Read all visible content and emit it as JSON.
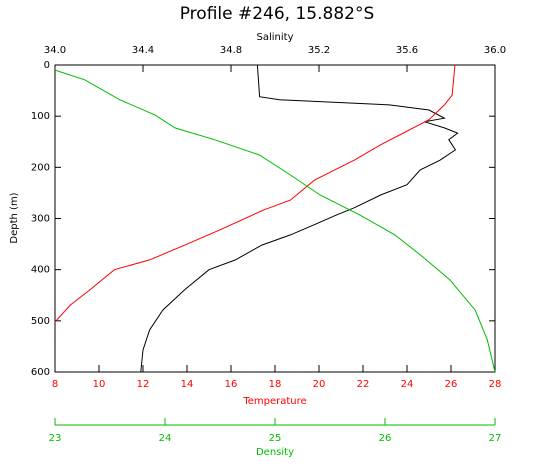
{
  "chart_data": {
    "type": "line",
    "title": "Profile #246, 15.882°S",
    "ylabel": "Depth (m)",
    "ylim": [
      0,
      600
    ],
    "yticks": [
      0,
      100,
      200,
      300,
      400,
      500,
      600
    ],
    "y_inverted": true,
    "series": [
      {
        "label": "Salinity",
        "color": "#000000",
        "position": "top",
        "xlim": [
          34,
          36
        ],
        "xticks": [
          {
            "value": 34,
            "label": "34.0"
          },
          34.4,
          34.8,
          35.2,
          35.6,
          {
            "value": 36,
            "label": "36.0"
          }
        ],
        "values": [
          34.92,
          34.93,
          35.02,
          35.52,
          35.7,
          35.77,
          35.68,
          35.77,
          35.83,
          35.79,
          35.82,
          35.75,
          35.66,
          35.6,
          35.48,
          35.36,
          35.28,
          35.18,
          35.07,
          34.94,
          34.82,
          34.7,
          34.59,
          34.49,
          34.43,
          34.4,
          34.39
        ],
        "depth": [
          0,
          62,
          68,
          78,
          88,
          104,
          111,
          123,
          133,
          146,
          166,
          186,
          205,
          234,
          254,
          279,
          293,
          312,
          332,
          352,
          381,
          400,
          439,
          479,
          518,
          557,
          600
        ]
      },
      {
        "label": "Temperature",
        "color": "#ff0000",
        "position": "bottom",
        "xlim": [
          8,
          28
        ],
        "xticks": [
          8,
          10,
          12,
          14,
          16,
          18,
          20,
          22,
          24,
          26,
          28
        ],
        "values": [
          26.18,
          26.05,
          25.7,
          25.0,
          24.1,
          22.8,
          21.6,
          19.8,
          18.7,
          17.5,
          15.5,
          13.9,
          12.3,
          10.7,
          9.6,
          8.7,
          8.0
        ],
        "depth": [
          0,
          59,
          78,
          107,
          127,
          156,
          186,
          225,
          264,
          283,
          322,
          352,
          381,
          400,
          439,
          469,
          502
        ]
      },
      {
        "label": "Density",
        "color": "#00bb00",
        "position": "lower",
        "xlim": [
          23,
          27
        ],
        "xticks": [
          23,
          24,
          25,
          26,
          27
        ],
        "values": [
          23.0,
          23.27,
          23.59,
          23.91,
          24.09,
          24.45,
          24.86,
          25.14,
          25.41,
          25.77,
          26.09,
          26.32,
          26.59,
          26.82,
          26.93,
          27.0
        ],
        "depth": [
          10,
          29,
          68,
          98,
          123,
          146,
          176,
          215,
          254,
          293,
          332,
          371,
          420,
          479,
          537,
          600
        ]
      }
    ]
  }
}
